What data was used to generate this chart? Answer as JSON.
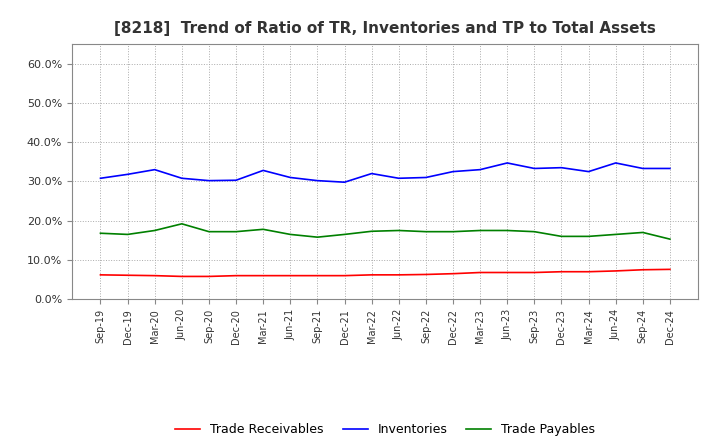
{
  "title": "[8218]  Trend of Ratio of TR, Inventories and TP to Total Assets",
  "x_labels": [
    "Sep-19",
    "Dec-19",
    "Mar-20",
    "Jun-20",
    "Sep-20",
    "Dec-20",
    "Mar-21",
    "Jun-21",
    "Sep-21",
    "Dec-21",
    "Mar-22",
    "Jun-22",
    "Sep-22",
    "Dec-22",
    "Mar-23",
    "Jun-23",
    "Sep-23",
    "Dec-23",
    "Mar-24",
    "Jun-24",
    "Sep-24",
    "Dec-24"
  ],
  "trade_receivables": [
    0.062,
    0.061,
    0.06,
    0.058,
    0.058,
    0.06,
    0.06,
    0.06,
    0.06,
    0.06,
    0.062,
    0.062,
    0.063,
    0.065,
    0.068,
    0.068,
    0.068,
    0.07,
    0.07,
    0.072,
    0.075,
    0.076
  ],
  "inventories": [
    0.308,
    0.318,
    0.33,
    0.308,
    0.302,
    0.303,
    0.328,
    0.31,
    0.302,
    0.298,
    0.32,
    0.308,
    0.31,
    0.325,
    0.33,
    0.347,
    0.333,
    0.335,
    0.325,
    0.347,
    0.333,
    0.333
  ],
  "trade_payables": [
    0.168,
    0.165,
    0.175,
    0.192,
    0.172,
    0.172,
    0.178,
    0.165,
    0.158,
    0.165,
    0.173,
    0.175,
    0.172,
    0.172,
    0.175,
    0.175,
    0.172,
    0.16,
    0.16,
    0.165,
    0.17,
    0.153
  ],
  "ylim": [
    0.0,
    0.65
  ],
  "yticks": [
    0.0,
    0.1,
    0.2,
    0.3,
    0.4,
    0.5,
    0.6
  ],
  "line_colors": {
    "trade_receivables": "#FF0000",
    "inventories": "#0000FF",
    "trade_payables": "#008000"
  },
  "legend_labels": [
    "Trade Receivables",
    "Inventories",
    "Trade Payables"
  ],
  "background_color": "#FFFFFF",
  "plot_bg_color": "#FFFFFF",
  "grid_color": "#AAAAAA",
  "title_color": "#333333"
}
